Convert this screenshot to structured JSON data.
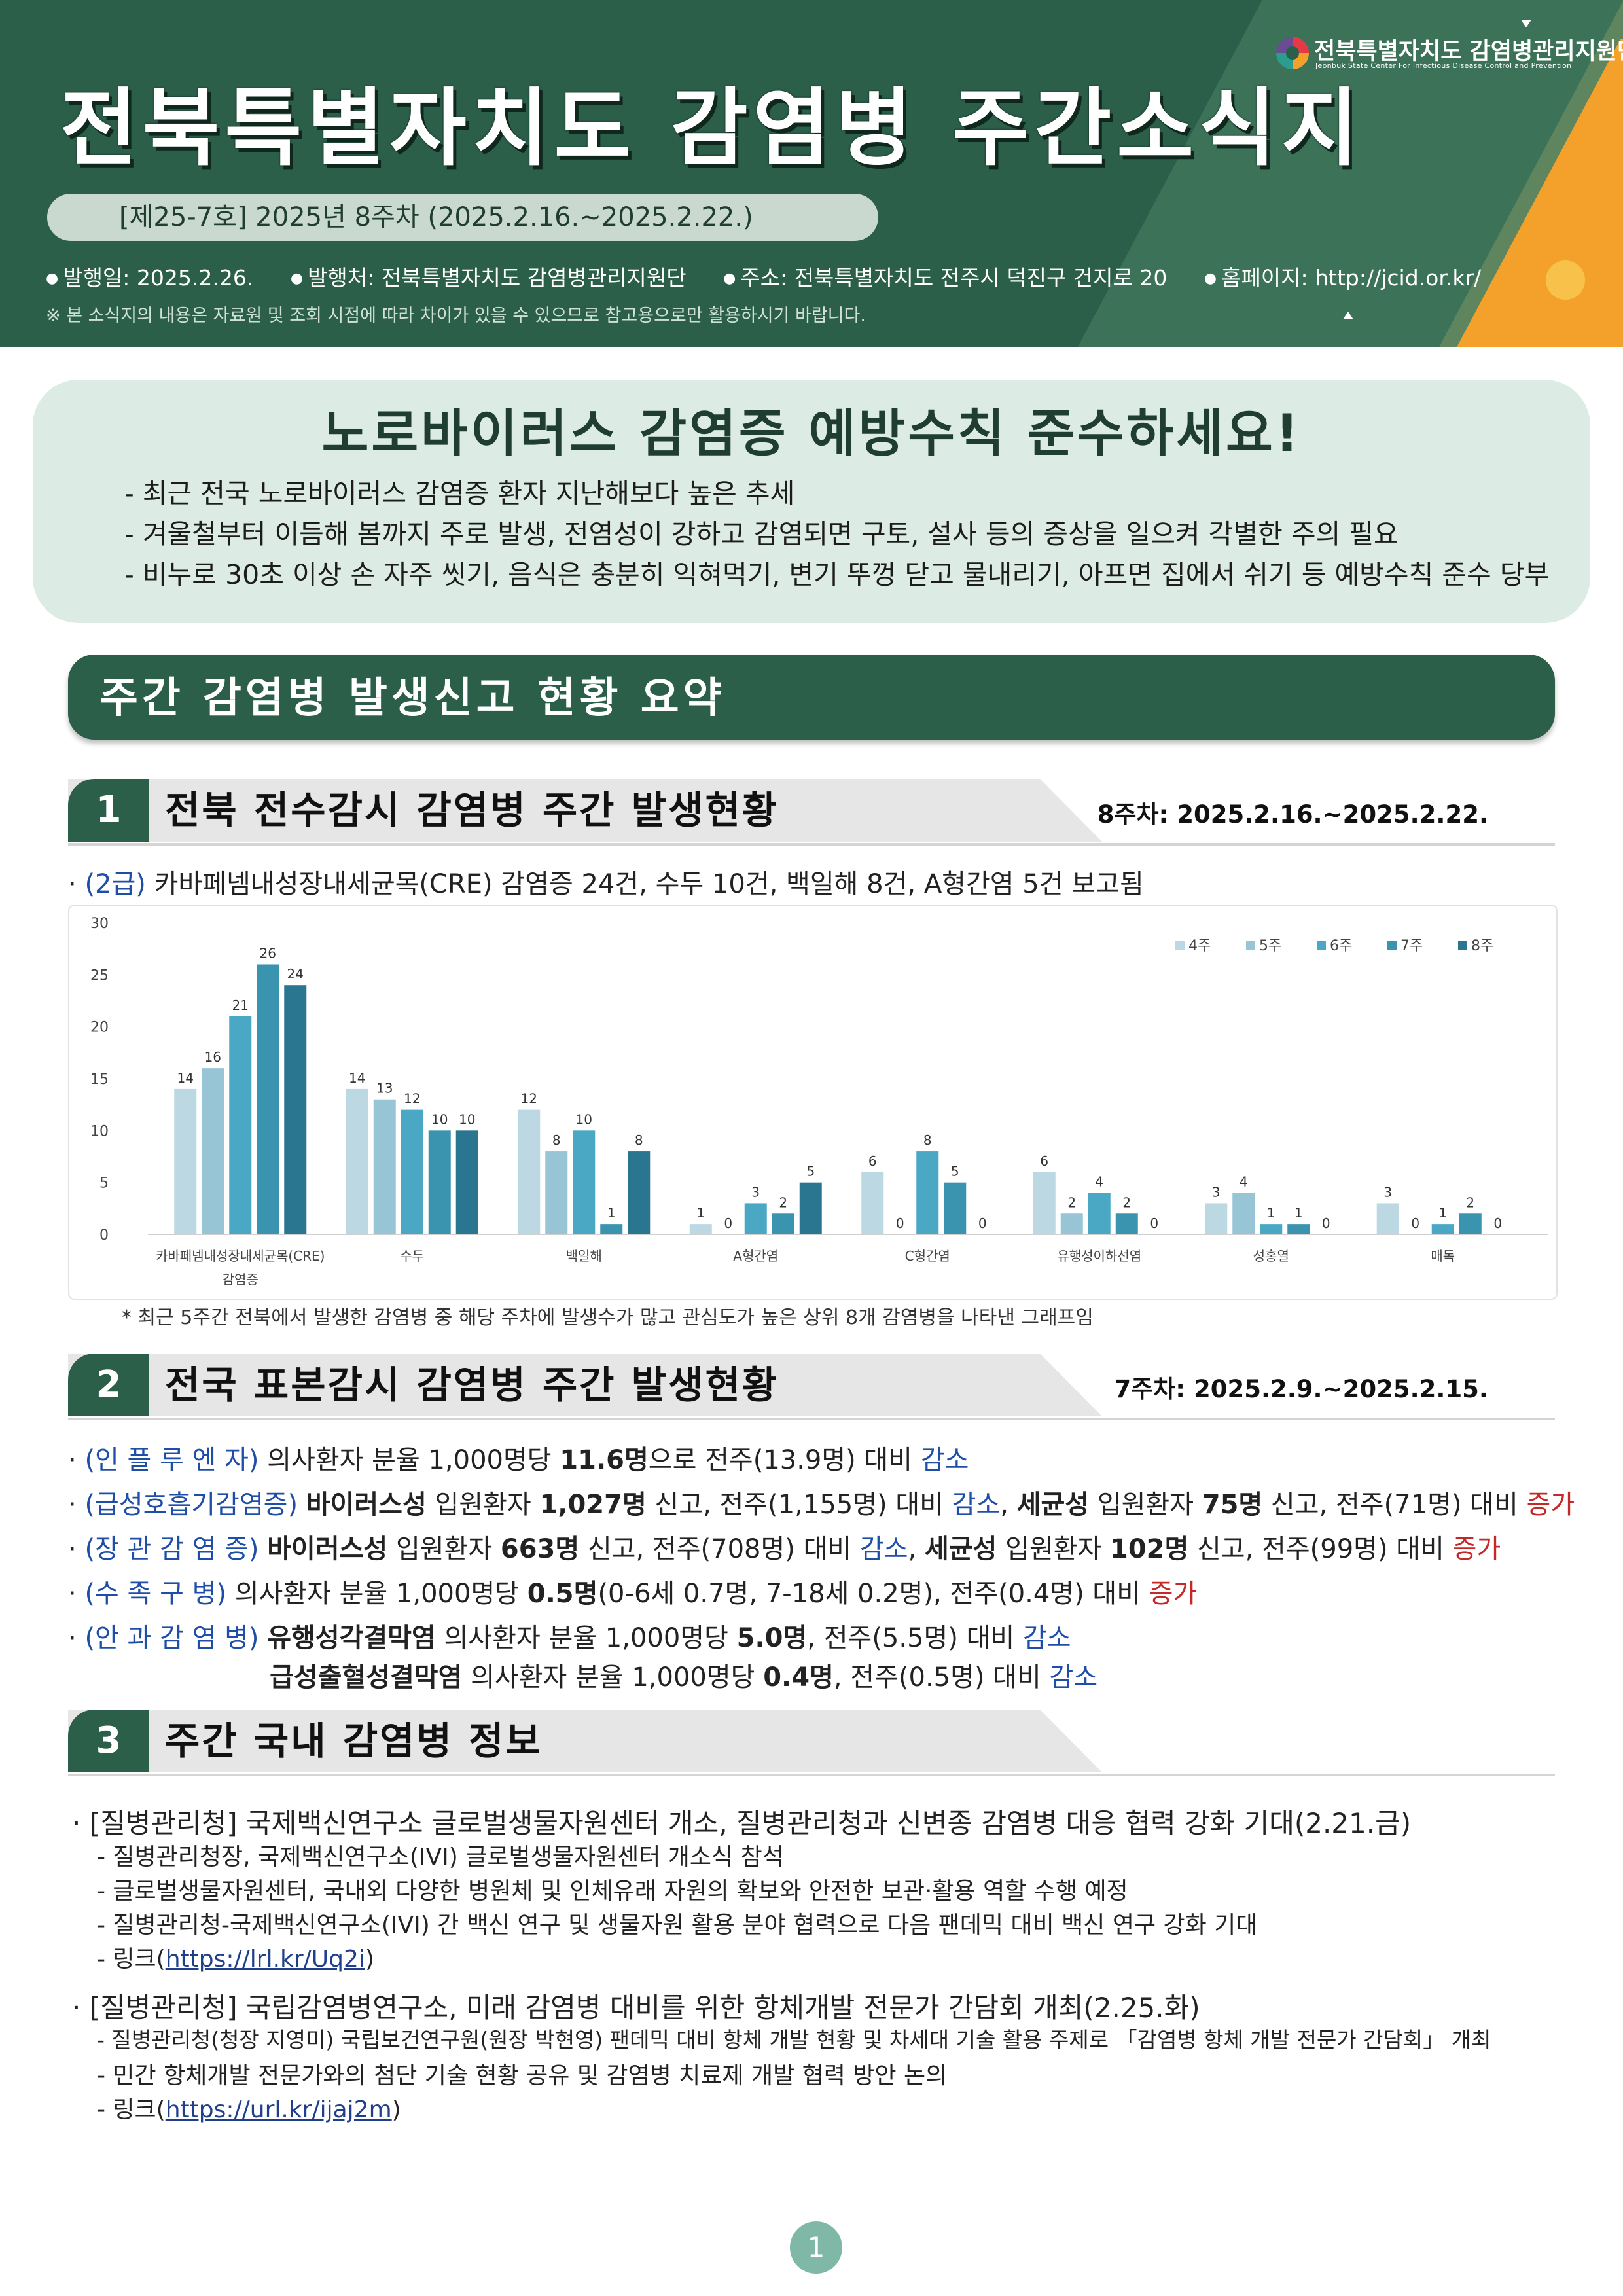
{
  "header": {
    "title": "전북특별자치도  감염병  주간소식지",
    "issue": "[제25-7호]  2025년  8주차  (2025.2.16.~2025.2.22.)",
    "org_name": "전북특별자치도 감염병관리지원단",
    "org_sub": "Jeonbuk State Center For Infectious Disease Control and Prevention",
    "info": {
      "published": "발행일:  2025.2.26.",
      "publisher": "발행처:  전북특별자치도  감염병관리지원단",
      "address": "주소:  전북특별자치도  전주시  덕진구  건지로  20",
      "homepage": "홈페이지:  http://jcid.or.kr/"
    },
    "notice": "※  본  소식지의  내용은  자료원  및  조회  시점에  따라  차이가  있을  수  있으므로  참고용으로만  활용하시기  바랍니다."
  },
  "noro": {
    "title": "노로바이러스  감염증  예방수칙  준수하세요!",
    "lines": [
      "-  최근  전국  노로바이러스  감염증  환자  지난해보다  높은  추세",
      "-  겨울철부터  이듬해  봄까지  주로  발생,  전염성이  강하고  감염되면  구토,  설사  등의  증상을  일으켜  각별한  주의  필요",
      "-  비누로  30초  이상  손  자주  씻기,  음식은  충분히  익혀먹기,  변기  뚜껑  닫고  물내리기,  아프면  집에서  쉬기  등  예방수칙  준수  당부"
    ]
  },
  "summary_title": "주간  감염병  발생신고  현황  요약",
  "section1": {
    "num": "1",
    "title": "전북  전수감시  감염병  주간  발생현황",
    "date": "8주차:  2025.2.16.~2025.2.22.",
    "lead_grade": "(2급)",
    "lead_text": " 카바페넴내성장내세균목(CRE)  감염증  24건,  수두  10건,  백일해  8건,  A형간염  5건  보고됨",
    "note": "*  최근  5주간  전북에서  발생한  감염병  중  해당  주차에  발생수가  많고  관심도가  높은  상위  8개  감염병을  나타낸  그래프임"
  },
  "chart_data": {
    "type": "bar",
    "categories": [
      "카바페넴내성장내세균목(CRE)\n감염증",
      "수두",
      "백일해",
      "A형간염",
      "C형간염",
      "유행성이하선염",
      "성홍열",
      "매독"
    ],
    "series": [
      {
        "name": "4주",
        "color": "#bcd8e3",
        "values": [
          14,
          14,
          12,
          1,
          6,
          6,
          3,
          3
        ]
      },
      {
        "name": "5주",
        "color": "#97c5d6",
        "values": [
          16,
          13,
          8,
          0,
          0,
          2,
          4,
          0
        ]
      },
      {
        "name": "6주",
        "color": "#4aa8c4",
        "values": [
          21,
          12,
          10,
          3,
          8,
          4,
          1,
          1
        ]
      },
      {
        "name": "7주",
        "color": "#3a94b0",
        "values": [
          26,
          10,
          1,
          2,
          5,
          2,
          1,
          2
        ]
      },
      {
        "name": "8주",
        "color": "#2a7590",
        "values": [
          24,
          10,
          8,
          5,
          0,
          0,
          0,
          0
        ]
      }
    ],
    "ylim": [
      0,
      30
    ],
    "yticks": [
      0,
      5,
      10,
      15,
      20,
      25,
      30
    ],
    "legend": "top-right",
    "grid": false
  },
  "section2": {
    "num": "2",
    "title": "전국  표본감시  감염병  주간  발생현황",
    "date": "7주차:  2025.2.9.~2025.2.15.",
    "lines": [
      {
        "cat": "(인 플 루 엔 자)",
        "parts": [
          {
            "t": " 의사환자  분율  1,000명당  "
          },
          {
            "t": "11.6명",
            "b": true
          },
          {
            "t": "으로  전주(13.9명)  대비  "
          },
          {
            "t": "감소",
            "c": "blue"
          }
        ]
      },
      {
        "cat": "(급성호흡기감염증)",
        "parts": [
          {
            "t": " "
          },
          {
            "t": "바이러스성",
            "b": true
          },
          {
            "t": "  입원환자  "
          },
          {
            "t": "1,027명",
            "b": true
          },
          {
            "t": "  신고,  전주(1,155명)  대비  "
          },
          {
            "t": "감소",
            "c": "blue"
          },
          {
            "t": ",  "
          },
          {
            "t": "세균성",
            "b": true
          },
          {
            "t": "  입원환자  "
          },
          {
            "t": "75명",
            "b": true
          },
          {
            "t": "  신고,  전주(71명)  대비  "
          },
          {
            "t": "증가",
            "c": "red"
          }
        ]
      },
      {
        "cat": "(장 관 감 염 증)",
        "parts": [
          {
            "t": " "
          },
          {
            "t": "바이러스성",
            "b": true
          },
          {
            "t": "  입원환자  "
          },
          {
            "t": "663명",
            "b": true
          },
          {
            "t": "  신고,  전주(708명)  대비  "
          },
          {
            "t": "감소",
            "c": "blue"
          },
          {
            "t": ",  "
          },
          {
            "t": "세균성",
            "b": true
          },
          {
            "t": "  입원환자  "
          },
          {
            "t": "102명",
            "b": true
          },
          {
            "t": "  신고,  전주(99명)  대비  "
          },
          {
            "t": "증가",
            "c": "red"
          }
        ]
      },
      {
        "cat": "(수  족  구  병)",
        "parts": [
          {
            "t": " 의사환자  분율  1,000명당  "
          },
          {
            "t": "0.5명",
            "b": true
          },
          {
            "t": "(0-6세  0.7명,  7-18세  0.2명),  전주(0.4명)  대비  "
          },
          {
            "t": "증가",
            "c": "red"
          }
        ]
      },
      {
        "cat": "(안 과 감 염 병)",
        "parts": [
          {
            "t": " "
          },
          {
            "t": "유행성각결막염",
            "b": true
          },
          {
            "t": "  의사환자  분율  1,000명당  "
          },
          {
            "t": "5.0명",
            "b": true
          },
          {
            "t": ",  전주(5.5명)  대비  "
          },
          {
            "t": "감소",
            "c": "blue"
          }
        ]
      },
      {
        "cat": "",
        "parts": [
          {
            "t": "급성출혈성결막염",
            "b": true
          },
          {
            "t": "  의사환자  분율  1,000명당  "
          },
          {
            "t": "0.4명",
            "b": true
          },
          {
            "t": ",  전주(0.5명)  대비  "
          },
          {
            "t": "감소",
            "c": "blue"
          }
        ]
      }
    ]
  },
  "section3": {
    "num": "3",
    "title": "주간  국내  감염병  정보",
    "items": [
      {
        "head": "·  [질병관리청]  국제백신연구소  글로벌생물자원센터  개소,  질병관리청과  신변종  감염병  대응  협력  강화  기대(2.21.금)",
        "subs": [
          "-  질병관리청장,  국제백신연구소(IVI)  글로벌생물자원센터  개소식  참석",
          "-  글로벌생물자원센터,  국내외  다양한  병원체  및  인체유래  자원의  확보와  안전한  보관·활용  역할  수행  예정",
          "-  질병관리청-국제백신연구소(IVI)  간  백신  연구  및  생물자원  활용  분야  협력으로  다음  팬데믹  대비  백신  연구  강화  기대"
        ],
        "link_prefix": "-  링크(",
        "link": "https://lrl.kr/Uq2i",
        "link_suffix": ")"
      },
      {
        "head": "·  [질병관리청]  국립감염병연구소,  미래  감염병  대비를  위한  항체개발  전문가  간담회  개최(2.25.화)",
        "subs": [
          "-  질병관리청(청장 지영미) 국립보건연구원(원장 박현영) 팬데믹 대비 항체 개발 현황 및 차세대 기술 활용 주제로 「감염병 항체 개발 전문가 간담회」 개최",
          "-  민간  항체개발  전문가와의  첨단  기술  현황  공유  및  감염병  치료제  개발  협력  방안  논의"
        ],
        "link_prefix": "-  링크(",
        "link": "https://url.kr/ijaj2m",
        "link_suffix": ")"
      }
    ]
  },
  "page_number": "1"
}
